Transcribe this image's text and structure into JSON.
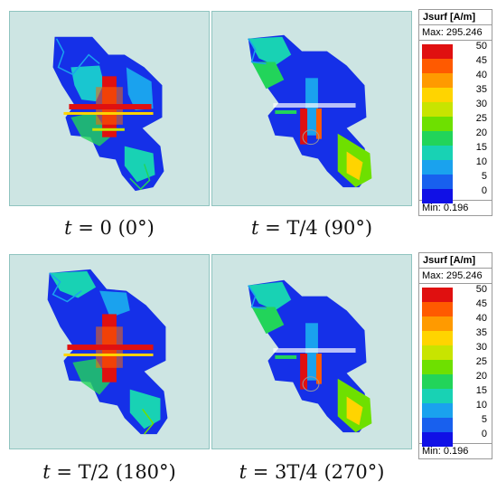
{
  "panels": [
    {
      "caption_var": "t",
      "caption_rest": " = 0 (0°)"
    },
    {
      "caption_var": "t",
      "caption_rest": " = T/4 (90°)"
    },
    {
      "caption_var": "t",
      "caption_rest": " = T/2 (180°)"
    },
    {
      "caption_var": "t",
      "caption_rest": " = 3T/4 (270°)"
    }
  ],
  "legend": {
    "title": "Jsurf [A/m]",
    "max": "Max: 295.246",
    "min": "Min:  0.196",
    "ticks": [
      "50",
      "45",
      "40",
      "35",
      "30",
      "25",
      "20",
      "15",
      "10",
      "5",
      "0"
    ],
    "colors": [
      "#e01010",
      "#ff5a00",
      "#ff9a00",
      "#ffd400",
      "#c8e400",
      "#6ee000",
      "#22d45a",
      "#18d2b4",
      "#1aa2ee",
      "#1860ee",
      "#1010e6"
    ]
  }
}
